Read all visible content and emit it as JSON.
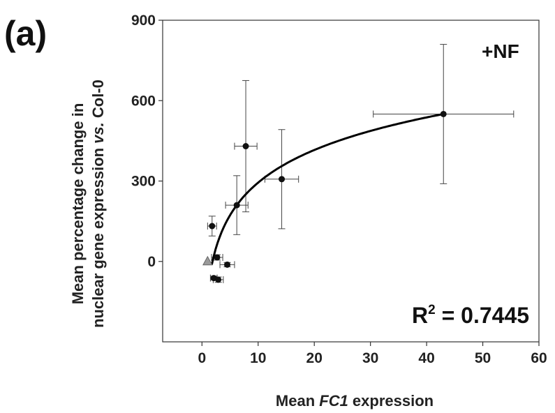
{
  "chart_data": {
    "type": "scatter",
    "panel_label": "(a)",
    "condition_label": "+NF",
    "xlabel_pre": "Mean ",
    "xlabel_italic": "FC1",
    "xlabel_post": " expression",
    "ylabel_line1": "Mean percentage change in",
    "ylabel_line2_pre": "nuclear gene expression ",
    "ylabel_line2_italic": "vs.",
    "ylabel_line2_post": " Col-0",
    "xlim": [
      -7,
      60
    ],
    "ylim": [
      -300,
      900
    ],
    "xticks": [
      0,
      10,
      20,
      30,
      40,
      50,
      60
    ],
    "yticks": [
      0,
      300,
      600,
      900
    ],
    "xtick_labels": [
      "0",
      "10",
      "20",
      "30",
      "40",
      "50",
      "60"
    ],
    "ytick_labels": [
      "0",
      "300",
      "600",
      "900"
    ],
    "r2_base": "R",
    "r2_sup": "2",
    "r2_value": " = 0.7445",
    "points": [
      {
        "x": 43.0,
        "y": 550,
        "xerr": 12.5,
        "yerr_low": 260,
        "yerr_high": 260
      },
      {
        "x": 14.2,
        "y": 307,
        "xerr": 3.0,
        "yerr_low": 185,
        "yerr_high": 185
      },
      {
        "x": 7.8,
        "y": 430,
        "xerr": 2.0,
        "yerr_low": 245,
        "yerr_high": 245
      },
      {
        "x": 6.2,
        "y": 210,
        "xerr": 2.0,
        "yerr_low": 110,
        "yerr_high": 110
      },
      {
        "x": 1.8,
        "y": 132,
        "xerr": 0.8,
        "yerr_low": 37,
        "yerr_high": 37
      },
      {
        "x": 2.7,
        "y": 15,
        "xerr": 1.0,
        "yerr_low": 10,
        "yerr_high": 10
      },
      {
        "x": 4.5,
        "y": -12,
        "xerr": 1.3,
        "yerr_low": 8,
        "yerr_high": 8
      },
      {
        "x": 2.1,
        "y": -62,
        "xerr": 0.6,
        "yerr_low": 7,
        "yerr_high": 7
      },
      {
        "x": 2.9,
        "y": -68,
        "xerr": 0.9,
        "yerr_low": 10,
        "yerr_high": 10
      }
    ],
    "reference_point": {
      "x": 1.0,
      "y": 0
    },
    "fit": {
      "type": "logarithmic",
      "x_from": 1.75,
      "x_to": 43.0,
      "a": 175.5,
      "b": -110
    },
    "colors": {
      "points": "#111111",
      "reference": "#9a9a9a",
      "axes": "#333333",
      "errorbars": "#444444"
    }
  }
}
